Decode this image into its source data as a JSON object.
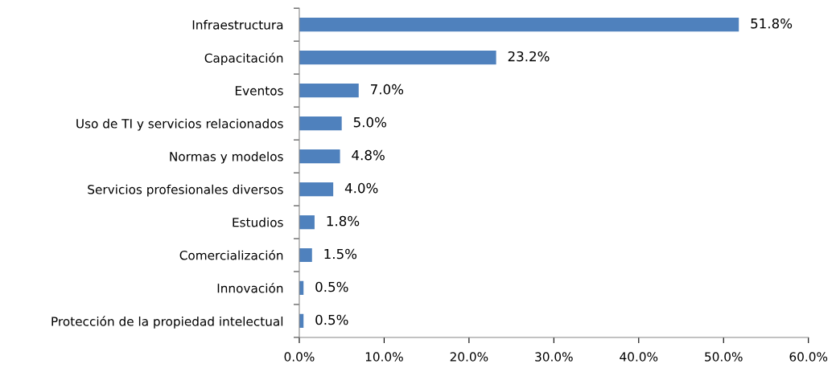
{
  "chart_data": {
    "type": "bar",
    "orientation": "horizontal",
    "categories": [
      "Infraestructura",
      "Capacitación",
      "Eventos",
      "Uso de TI y servicios relacionados",
      "Normas y modelos",
      "Servicios profesionales diversos",
      "Estudios",
      "Comercialización",
      "Innovación",
      "Protección de la propiedad intelectual"
    ],
    "values": [
      51.8,
      23.2,
      7.0,
      5.0,
      4.8,
      4.0,
      1.8,
      1.5,
      0.5,
      0.5
    ],
    "value_labels": [
      "51.8%",
      "23.2%",
      "7.0%",
      "5.0%",
      "4.8%",
      "4.0%",
      "1.8%",
      "1.5%",
      "0.5%",
      "0.5%"
    ],
    "color": "#4f81bd",
    "xlim": [
      0,
      60
    ],
    "xticks": [
      {
        "value": 0,
        "label": "0.0%"
      },
      {
        "value": 10,
        "label": "10.0%"
      },
      {
        "value": 20,
        "label": "20.0%"
      },
      {
        "value": 30,
        "label": "30.0%"
      },
      {
        "value": 40,
        "label": "40.0%"
      },
      {
        "value": 50,
        "label": "50.0%"
      },
      {
        "value": 60,
        "label": "60.0%"
      }
    ],
    "grid": false,
    "legend": false
  }
}
